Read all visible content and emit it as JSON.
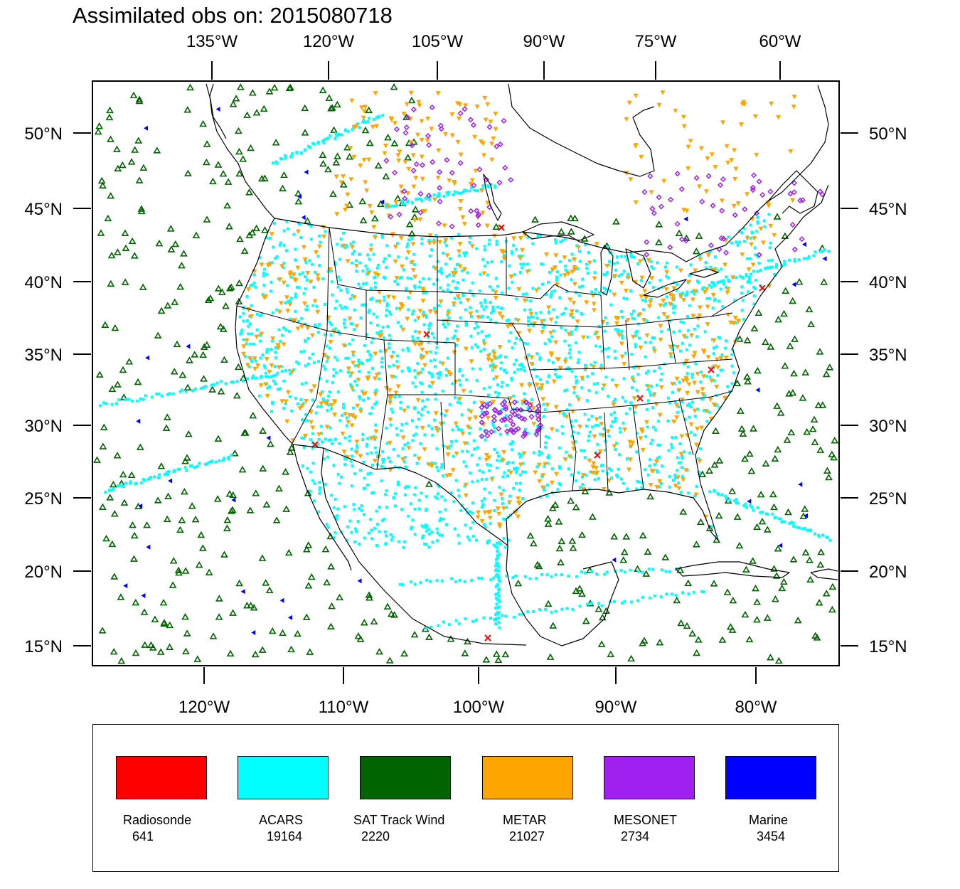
{
  "title": "Assimilated obs on: 2015080718",
  "map": {
    "top_axis_labels": [
      "135°W",
      "120°W",
      "105°W",
      "90°W",
      "75°W",
      "60°W"
    ],
    "bottom_axis_labels": [
      "120°W",
      "110°W",
      "100°W",
      "90°W",
      "80°W"
    ],
    "lat_labels": [
      "50°N",
      "45°N",
      "40°N",
      "35°N",
      "30°N",
      "25°N",
      "20°N",
      "15°N"
    ],
    "extent": {
      "lon_min": -128.3,
      "lon_max": -74.5,
      "lat_min": 13.7,
      "lat_max": 53.5
    }
  },
  "legend": {
    "items": [
      {
        "name": "Radiosonde",
        "count": "641",
        "color": "#ff0000",
        "symbol": "x"
      },
      {
        "name": "ACARS",
        "count": "19164",
        "color": "#00ffff",
        "symbol": "square"
      },
      {
        "name": "SAT Track Wind",
        "count": "2220",
        "color": "#006400",
        "symbol": "triangle-up"
      },
      {
        "name": "METAR",
        "count": "21027",
        "color": "#ffa500",
        "symbol": "triangle-down"
      },
      {
        "name": "MESONET",
        "count": "2734",
        "color": "#a020f0",
        "symbol": "diamond"
      },
      {
        "name": "Marine",
        "count": "3454",
        "color": "#0000ff",
        "symbol": "triangle-left"
      }
    ]
  }
}
